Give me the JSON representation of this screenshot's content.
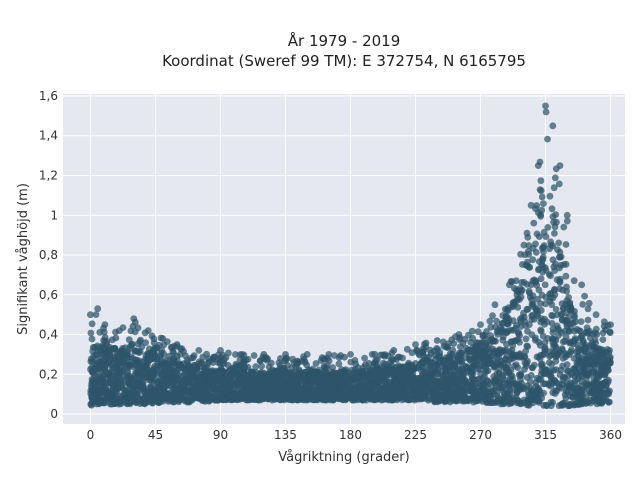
{
  "chart_data": {
    "type": "scatter",
    "title_line1": "År 1979 - 2019",
    "title_line2": "Koordinat (Sweref 99 TM): E 372754, N 6165795",
    "xlabel": "Vågriktning (grader)",
    "ylabel": "Signifikant våghöjd (m)",
    "xlim": [
      -19,
      370
    ],
    "ylim": [
      -0.05,
      1.61
    ],
    "x_ticks": [
      0,
      45,
      90,
      135,
      180,
      225,
      270,
      315,
      360
    ],
    "x_tick_labels": [
      "0",
      "45",
      "90",
      "135",
      "180",
      "225",
      "270",
      "315",
      "360"
    ],
    "y_ticks": [
      0,
      0.2,
      0.4,
      0.6,
      0.8,
      1,
      1.2,
      1.4,
      1.6
    ],
    "y_tick_labels": [
      "0",
      "0,2",
      "0,4",
      "0,6",
      "0,8",
      "1",
      "1,2",
      "1,4",
      "1,6"
    ],
    "grid": true,
    "marker_color": "#2e5469",
    "background_color": "#e5e8f0",
    "series": [
      {
        "name": "",
        "envelope_x": [
          0,
          5,
          10,
          20,
          30,
          40,
          50,
          60,
          75,
          90,
          105,
          120,
          135,
          150,
          165,
          180,
          195,
          210,
          225,
          240,
          255,
          270,
          280,
          290,
          300,
          305,
          310,
          315,
          320,
          325,
          330,
          340,
          350,
          360
        ],
        "envelope_ymin": [
          0.04,
          0.05,
          0.05,
          0.05,
          0.05,
          0.05,
          0.06,
          0.06,
          0.06,
          0.07,
          0.07,
          0.07,
          0.07,
          0.07,
          0.07,
          0.07,
          0.07,
          0.07,
          0.07,
          0.06,
          0.06,
          0.06,
          0.05,
          0.05,
          0.05,
          0.04,
          0.04,
          0.04,
          0.04,
          0.04,
          0.04,
          0.05,
          0.05,
          0.06
        ],
        "envelope_ymax": [
          0.5,
          0.53,
          0.45,
          0.42,
          0.48,
          0.42,
          0.38,
          0.35,
          0.32,
          0.32,
          0.3,
          0.3,
          0.3,
          0.3,
          0.3,
          0.3,
          0.3,
          0.32,
          0.35,
          0.37,
          0.4,
          0.45,
          0.55,
          0.65,
          0.85,
          1.05,
          1.25,
          1.55,
          1.45,
          1.25,
          1.0,
          0.65,
          0.5,
          0.45
        ],
        "core_ymax": [
          0.32,
          0.33,
          0.33,
          0.32,
          0.32,
          0.3,
          0.27,
          0.25,
          0.23,
          0.22,
          0.21,
          0.21,
          0.21,
          0.21,
          0.21,
          0.21,
          0.22,
          0.23,
          0.25,
          0.27,
          0.3,
          0.35,
          0.4,
          0.5,
          0.68,
          0.82,
          0.95,
          1.1,
          1.0,
          0.8,
          0.6,
          0.4,
          0.34,
          0.32
        ]
      }
    ]
  }
}
